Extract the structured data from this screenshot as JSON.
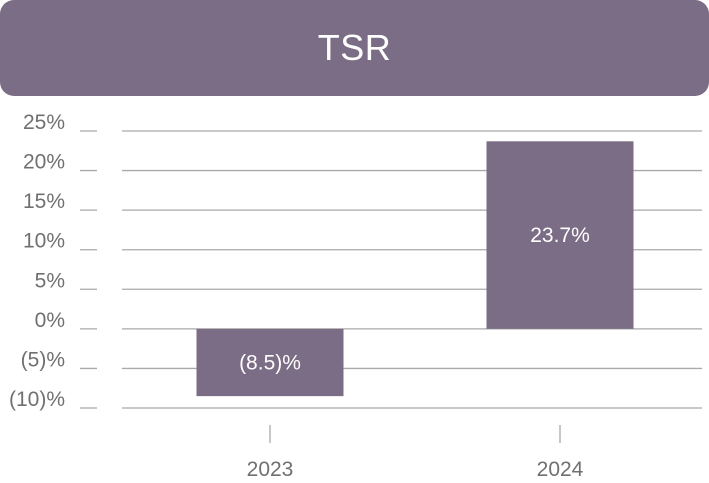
{
  "chart_data": {
    "type": "bar",
    "title": "TSR",
    "categories": [
      "2023",
      "2024"
    ],
    "values": [
      -8.5,
      23.7
    ],
    "data_labels": [
      "(8.5)%",
      "23.7%"
    ],
    "ylim": [
      -10,
      25
    ],
    "yticks": [
      25,
      20,
      15,
      10,
      5,
      0,
      -5,
      -10
    ],
    "ytick_labels": [
      "25%",
      "20%",
      "15%",
      "10%",
      "5%",
      "0%",
      "(5)%",
      "(10)%"
    ],
    "grid": true,
    "bar_color": "#7b6d85",
    "title_background": "#7b6d85"
  }
}
